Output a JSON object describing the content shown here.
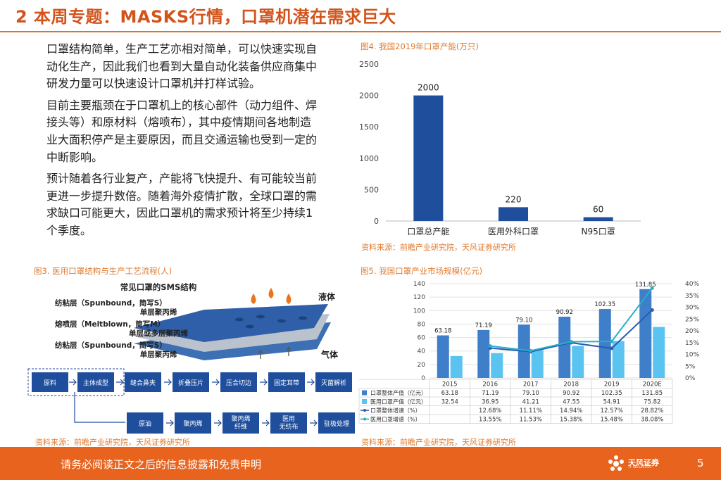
{
  "page": {
    "title": "2 本周专题：MASKS行情，口罩机潜在需求巨大",
    "paragraphs": [
      "口罩结构简单，生产工艺亦相对简单，可以快速实现自动化生产，因此我们也看到大量自动化装备供应商集中研发力量可以快速设计口罩机并打样试验。",
      "目前主要瓶颈在于口罩机上的核心部件（动力组件、焊接头等）和原材料（熔喷布），其中疫情期间各地制造业大面积停产是主要原因，而且交通运输也受到一定的中断影响。",
      "预计随着各行业复产，产能将飞快提升、有可能较当前更进一步提升数倍。随着海外疫情扩散，全球口罩的需求缺口可能更大，因此口罩机的需求预计将至少持续1个季度。"
    ],
    "footer_text": "请务必阅读正文之后的信息披露和免责申明",
    "logo_text": "天风证券",
    "logo_sub": "TF SECURITIES",
    "page_number": "5",
    "brand_color": "#e8641e"
  },
  "figure3": {
    "caption": "图3. 医用口罩结构与生产工艺流程(人)",
    "source": "资料来源：前瞻产业研究院，天风证券研究所",
    "structure_title": "常见口罩的SMS结构",
    "liquid_label": "液体",
    "gas_label": "气体",
    "layers": [
      {
        "name": "纺粘层（Spunbound，简写S）",
        "material": "单层聚丙烯"
      },
      {
        "name": "熔喷层（Meltblown，简写M）",
        "material": "单层或多层聚丙烯"
      },
      {
        "name": "纺粘层（Spunbound，简写S）",
        "material": "单层聚丙烯"
      }
    ],
    "process_top": [
      "原料",
      "主体成型",
      "缝合鼻夹",
      "折叠压片",
      "压合切边",
      "固定耳带",
      "灭菌解析"
    ],
    "process_bottom": [
      "原油",
      "聚丙烯",
      "聚丙烯\n纤维",
      "医用\n无纺布",
      "驻极处理"
    ]
  },
  "figure4": {
    "caption": "图4. 我国2019年口罩产能(万只)",
    "source": "资料来源：前瞻产业研究院，天风证券研究所"
  },
  "figure5": {
    "caption": "图5. 我国口罩产业市场规模(亿元)",
    "source": "资料来源：前瞻产业研究院，天风证券研究所"
  },
  "chart_data": [
    {
      "type": "bar",
      "title": "",
      "categories": [
        "口罩总产能",
        "医用外科口罩",
        "N95口罩"
      ],
      "values": [
        2000,
        220,
        60
      ],
      "ylim": [
        0,
        2500
      ],
      "yticks": [
        0,
        500,
        1000,
        1500,
        2000,
        2500
      ],
      "bar_color": "#1f4e9c",
      "grid": false
    },
    {
      "type": "bar",
      "title": "",
      "categories": [
        "2015",
        "2016",
        "2017",
        "2018",
        "2019",
        "2020E"
      ],
      "series": [
        {
          "name": "口罩整体产值（亿元）",
          "values": [
            63.18,
            71.19,
            79.1,
            90.92,
            102.35,
            131.85
          ],
          "color": "#3f7fca",
          "axis": "left"
        },
        {
          "name": "医用口罩产值（亿元）",
          "values": [
            32.54,
            36.95,
            41.21,
            47.55,
            54.91,
            75.82
          ],
          "color": "#5bc3f0",
          "axis": "left"
        },
        {
          "name": "口罩整体增速（%）",
          "values": [
            null,
            12.68,
            11.11,
            14.94,
            12.57,
            28.82
          ],
          "display": [
            "",
            "12.68%",
            "11.11%",
            "14.94%",
            "12.57%",
            "28.82%"
          ],
          "color": "#2a5cb0",
          "axis": "right"
        },
        {
          "name": "医用口罩增速（%）",
          "values": [
            null,
            13.55,
            11.53,
            15.38,
            15.48,
            38.08
          ],
          "display": [
            "",
            "13.55%",
            "11.53%",
            "15.38%",
            "15.48%",
            "38.08%"
          ],
          "color": "#26b0c8",
          "axis": "right"
        }
      ],
      "bar_labels": [
        "63.18",
        "71.19",
        "79.10",
        "90.92",
        "102.35",
        "131.85"
      ],
      "ylim_left": [
        0,
        140
      ],
      "yticks_left": [
        0,
        20,
        40,
        60,
        80,
        100,
        120,
        140
      ],
      "ylim_right": [
        0,
        40
      ],
      "yticks_right": [
        "0%",
        "5%",
        "10%",
        "15%",
        "20%",
        "25%",
        "30%",
        "35%",
        "40%"
      ],
      "grid": true,
      "legend": "data-table"
    }
  ]
}
